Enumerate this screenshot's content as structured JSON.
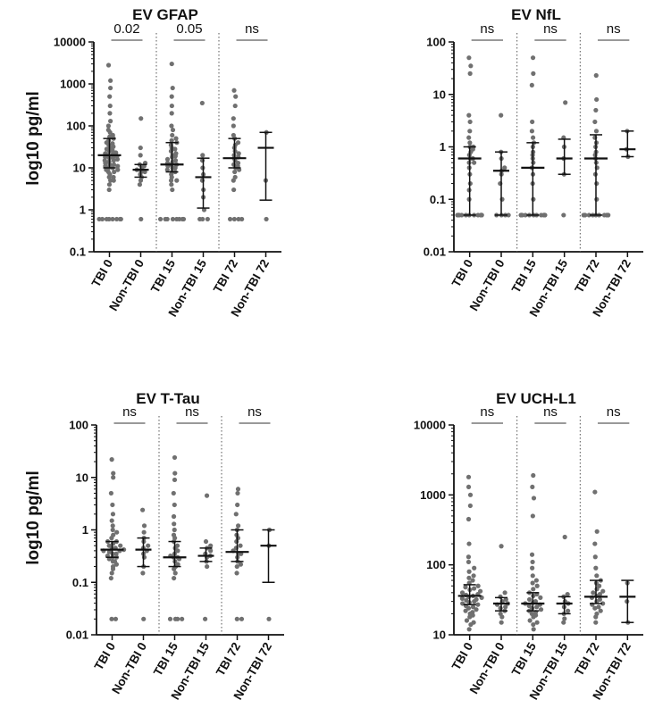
{
  "figure": {
    "ylabel": "log10 pg/ml"
  },
  "chart_data": [
    {
      "type": "scatter",
      "title": "EV GFAP",
      "ylabel": "log10 pg/ml",
      "yscale": "log",
      "ylim": [
        0.1,
        10000
      ],
      "yticks": [
        "0.1",
        "1",
        "10",
        "100",
        "1000",
        "10000"
      ],
      "categories": [
        "TBI 0",
        "Non-TBI 0",
        "TBI 15",
        "Non-TBI 15",
        "TBI 72",
        "Non-TBI 72"
      ],
      "comparisons": [
        "0.02",
        "0.05",
        "ns"
      ],
      "groups": [
        {
          "name": "TBI 0",
          "points": [
            0.6,
            0.6,
            0.6,
            0.6,
            0.6,
            0.6,
            0.6,
            0.6,
            3,
            4,
            5,
            5,
            6,
            6,
            7,
            8,
            8,
            9,
            9,
            10,
            10,
            11,
            11,
            12,
            12,
            13,
            14,
            15,
            15,
            16,
            17,
            18,
            18,
            19,
            20,
            21,
            22,
            23,
            25,
            26,
            28,
            30,
            32,
            35,
            38,
            40,
            45,
            50,
            55,
            60,
            70,
            80,
            100,
            130,
            200,
            300,
            500,
            800,
            1200,
            2800
          ],
          "median": 20,
          "lower": 10,
          "upper": 50
        },
        {
          "name": "Non-TBI 0",
          "points": [
            0.6,
            4,
            5,
            6,
            7,
            8,
            8,
            9,
            10,
            11,
            12,
            13,
            20,
            30,
            150
          ],
          "median": 9,
          "lower": 6,
          "upper": 12
        },
        {
          "name": "TBI 15",
          "points": [
            0.6,
            0.6,
            0.6,
            0.6,
            0.6,
            0.6,
            0.6,
            0.6,
            3,
            4,
            5,
            5,
            6,
            7,
            8,
            8,
            9,
            10,
            10,
            11,
            12,
            12,
            13,
            14,
            15,
            16,
            18,
            19,
            20,
            22,
            25,
            28,
            30,
            35,
            40,
            45,
            50,
            60,
            80,
            100,
            200,
            300,
            500,
            800,
            3000
          ],
          "median": 12,
          "lower": 8,
          "upper": 40
        },
        {
          "name": "Non-TBI 15",
          "points": [
            0.6,
            0.6,
            0.6,
            1,
            2,
            3,
            5,
            7,
            10,
            15,
            20,
            350
          ],
          "median": 6,
          "lower": 1.1,
          "upper": 17
        },
        {
          "name": "TBI 72",
          "points": [
            0.6,
            0.6,
            0.6,
            0.6,
            3,
            5,
            6,
            8,
            9,
            10,
            11,
            12,
            13,
            15,
            17,
            18,
            20,
            22,
            25,
            30,
            35,
            40,
            50,
            60,
            100,
            150,
            300,
            500,
            700
          ],
          "median": 17,
          "lower": 10,
          "upper": 50
        },
        {
          "name": "Non-TBI 72",
          "points": [
            0.6,
            5,
            70
          ],
          "median": 30,
          "lower": 1.7,
          "upper": 70
        }
      ]
    },
    {
      "type": "scatter",
      "title": "EV NfL",
      "ylabel": "",
      "yscale": "log",
      "ylim": [
        0.01,
        100
      ],
      "yticks": [
        "0.01",
        "0.1",
        "1",
        "10",
        "100"
      ],
      "categories": [
        "TBI 0",
        "Non-TBI 0",
        "TBI 15",
        "Non-TBI 15",
        "TBI 72",
        "Non-TBI 72"
      ],
      "comparisons": [
        "ns",
        "ns",
        "ns"
      ],
      "groups": [
        {
          "name": "TBI 0",
          "points": [
            0.05,
            0.05,
            0.05,
            0.05,
            0.05,
            0.05,
            0.05,
            0.05,
            0.05,
            0.05,
            0.05,
            0.05,
            0.05,
            0.05,
            0.05,
            0.05,
            0.05,
            0.05,
            0.1,
            0.15,
            0.2,
            0.3,
            0.4,
            0.5,
            0.5,
            0.6,
            0.6,
            0.7,
            0.8,
            0.9,
            1,
            1,
            1.2,
            1.5,
            2,
            3,
            4,
            25,
            35,
            50
          ],
          "median": 0.6,
          "lower": 0.05,
          "upper": 1
        },
        {
          "name": "Non-TBI 0",
          "points": [
            0.05,
            0.05,
            0.05,
            0.05,
            0.1,
            0.2,
            0.3,
            0.35,
            0.4,
            0.6,
            0.8,
            4
          ],
          "median": 0.35,
          "lower": 0.05,
          "upper": 0.8
        },
        {
          "name": "TBI 15",
          "points": [
            0.05,
            0.05,
            0.05,
            0.05,
            0.05,
            0.05,
            0.05,
            0.05,
            0.05,
            0.05,
            0.05,
            0.05,
            0.05,
            0.05,
            0.05,
            0.05,
            0.05,
            0.05,
            0.1,
            0.2,
            0.3,
            0.4,
            0.5,
            0.6,
            0.7,
            0.8,
            1,
            1.2,
            1.5,
            2,
            3,
            15,
            25,
            50
          ],
          "median": 0.4,
          "lower": 0.05,
          "upper": 1.2
        },
        {
          "name": "Non-TBI 15",
          "points": [
            0.05,
            0.3,
            0.6,
            1,
            1.5,
            7
          ],
          "median": 0.6,
          "lower": 0.3,
          "upper": 1.4
        },
        {
          "name": "TBI 72",
          "points": [
            0.05,
            0.05,
            0.05,
            0.05,
            0.05,
            0.05,
            0.05,
            0.05,
            0.05,
            0.05,
            0.05,
            0.05,
            0.1,
            0.2,
            0.3,
            0.4,
            0.5,
            0.6,
            0.7,
            0.8,
            1,
            1.2,
            1.5,
            2,
            3,
            5,
            8,
            23
          ],
          "median": 0.6,
          "lower": 0.05,
          "upper": 1.7
        },
        {
          "name": "Non-TBI 72",
          "points": [
            0.65,
            0.9,
            2
          ],
          "median": 0.9,
          "lower": 0.65,
          "upper": 2
        }
      ]
    },
    {
      "type": "scatter",
      "title": "EV T-Tau",
      "ylabel": "log10 pg/ml",
      "yscale": "log",
      "ylim": [
        0.01,
        100
      ],
      "yticks": [
        "0.01",
        "0.1",
        "1",
        "10",
        "100"
      ],
      "categories": [
        "TBI 0",
        "Non-TBI 0",
        "TBI 15",
        "Non-TBI 15",
        "TBI 72",
        "Non-TBI 72"
      ],
      "comparisons": [
        "ns",
        "ns",
        "ns"
      ],
      "groups": [
        {
          "name": "TBI 0",
          "points": [
            0.02,
            0.02,
            0.12,
            0.15,
            0.18,
            0.2,
            0.22,
            0.25,
            0.25,
            0.28,
            0.3,
            0.3,
            0.32,
            0.35,
            0.35,
            0.38,
            0.4,
            0.4,
            0.42,
            0.45,
            0.45,
            0.5,
            0.5,
            0.55,
            0.6,
            0.6,
            0.7,
            0.8,
            0.9,
            1,
            1.2,
            1.5,
            2,
            3,
            5,
            10,
            12,
            22
          ],
          "median": 0.42,
          "lower": 0.3,
          "upper": 0.6
        },
        {
          "name": "Non-TBI 0",
          "points": [
            0.02,
            0.15,
            0.2,
            0.3,
            0.35,
            0.4,
            0.45,
            0.5,
            0.6,
            0.7,
            0.9,
            1.2,
            2.4
          ],
          "median": 0.42,
          "lower": 0.2,
          "upper": 0.7
        },
        {
          "name": "TBI 15",
          "points": [
            0.02,
            0.02,
            0.02,
            0.02,
            0.12,
            0.15,
            0.18,
            0.2,
            0.22,
            0.25,
            0.28,
            0.3,
            0.3,
            0.32,
            0.35,
            0.4,
            0.45,
            0.5,
            0.6,
            0.7,
            0.8,
            1,
            1.3,
            1.8,
            3,
            5,
            9,
            12,
            24
          ],
          "median": 0.3,
          "lower": 0.2,
          "upper": 0.6
        },
        {
          "name": "Non-TBI 15",
          "points": [
            0.02,
            0.2,
            0.25,
            0.3,
            0.32,
            0.35,
            0.4,
            0.45,
            0.5,
            0.6,
            4.5
          ],
          "median": 0.32,
          "lower": 0.25,
          "upper": 0.45
        },
        {
          "name": "TBI 72",
          "points": [
            0.02,
            0.02,
            0.15,
            0.2,
            0.22,
            0.25,
            0.3,
            0.35,
            0.35,
            0.4,
            0.45,
            0.5,
            0.6,
            0.7,
            0.8,
            1,
            1.2,
            2,
            3,
            5,
            6
          ],
          "median": 0.38,
          "lower": 0.25,
          "upper": 1
        },
        {
          "name": "Non-TBI 72",
          "points": [
            0.02,
            0.5,
            1
          ],
          "median": 0.5,
          "lower": 0.1,
          "upper": 1
        }
      ]
    },
    {
      "type": "scatter",
      "title": "EV UCH-L1",
      "ylabel": "",
      "yscale": "log",
      "ylim": [
        10,
        10000
      ],
      "yticks": [
        "10",
        "100",
        "1000",
        "10000"
      ],
      "categories": [
        "TBI 0",
        "Non-TBI 0",
        "TBI 15",
        "Non-TBI 15",
        "TBI 72",
        "Non-TBI 72"
      ],
      "comparisons": [
        "ns",
        "ns",
        "ns"
      ],
      "groups": [
        {
          "name": "TBI 0",
          "points": [
            12,
            14,
            15,
            16,
            18,
            19,
            20,
            21,
            22,
            23,
            24,
            25,
            26,
            27,
            28,
            29,
            30,
            31,
            32,
            33,
            34,
            35,
            36,
            37,
            38,
            40,
            42,
            44,
            46,
            48,
            50,
            55,
            60,
            65,
            70,
            80,
            90,
            110,
            130,
            200,
            450,
            700,
            1000,
            1300,
            1800
          ],
          "median": 36,
          "lower": 27,
          "upper": 52
        },
        {
          "name": "Non-TBI 0",
          "points": [
            15,
            18,
            20,
            22,
            24,
            25,
            27,
            28,
            30,
            32,
            35,
            40,
            185
          ],
          "median": 28,
          "lower": 22,
          "upper": 34
        },
        {
          "name": "TBI 15",
          "points": [
            12,
            14,
            15,
            16,
            18,
            19,
            20,
            21,
            22,
            23,
            24,
            25,
            26,
            27,
            28,
            29,
            30,
            32,
            34,
            36,
            38,
            40,
            45,
            50,
            55,
            60,
            70,
            90,
            110,
            140,
            500,
            900,
            1300,
            1900
          ],
          "median": 28,
          "lower": 22,
          "upper": 40
        },
        {
          "name": "Non-TBI 15",
          "points": [
            15,
            17,
            20,
            22,
            25,
            28,
            30,
            35,
            38,
            250
          ],
          "median": 28,
          "lower": 20,
          "upper": 35
        },
        {
          "name": "TBI 72",
          "points": [
            15,
            18,
            20,
            22,
            24,
            25,
            27,
            28,
            30,
            32,
            34,
            36,
            38,
            40,
            42,
            45,
            50,
            55,
            60,
            70,
            90,
            130,
            200,
            300,
            1100
          ],
          "median": 35,
          "lower": 28,
          "upper": 60
        },
        {
          "name": "Non-TBI 72",
          "points": [
            15,
            30,
            55
          ],
          "median": 35,
          "lower": 15,
          "upper": 60
        }
      ]
    }
  ]
}
